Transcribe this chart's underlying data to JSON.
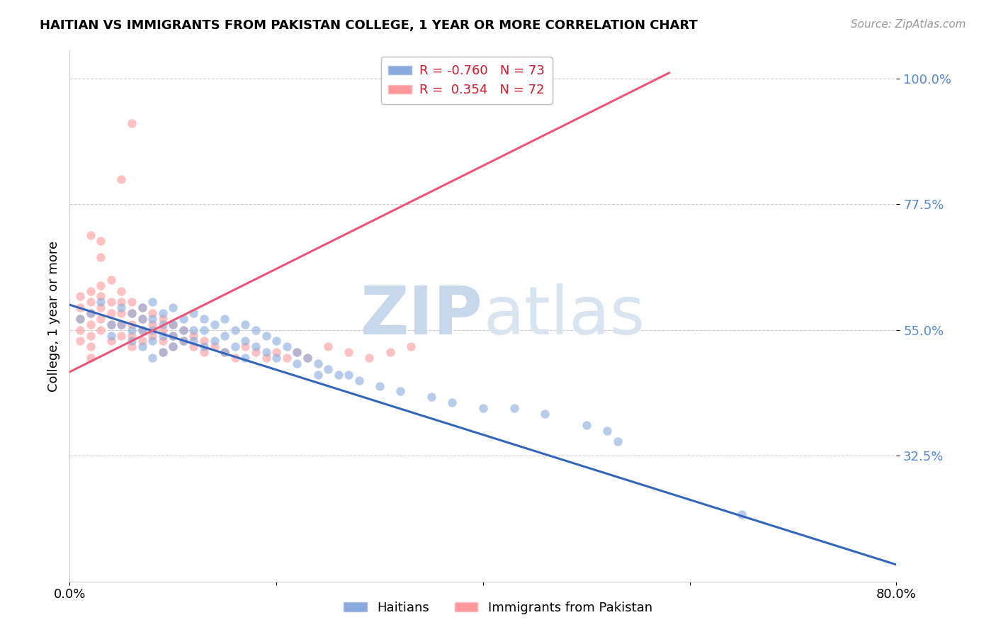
{
  "title": "HAITIAN VS IMMIGRANTS FROM PAKISTAN COLLEGE, 1 YEAR OR MORE CORRELATION CHART",
  "source": "Source: ZipAtlas.com",
  "ylabel": "College, 1 year or more",
  "xmin": 0.0,
  "xmax": 0.8,
  "ymin": 0.1,
  "ymax": 1.05,
  "yticks": [
    0.325,
    0.55,
    0.775,
    1.0
  ],
  "ytick_labels": [
    "32.5%",
    "55.0%",
    "77.5%",
    "100.0%"
  ],
  "xticks": [
    0.0,
    0.2,
    0.4,
    0.6,
    0.8
  ],
  "xtick_labels": [
    "0.0%",
    "",
    "",
    "",
    "80.0%"
  ],
  "r_blue": -0.76,
  "n_blue": 73,
  "r_pink": 0.354,
  "n_pink": 72,
  "blue_color": "#88AADD",
  "pink_color": "#FF9999",
  "blue_line_color": "#3366BB",
  "pink_line_color": "#EE5577",
  "watermark_zip": "ZIP",
  "watermark_atlas": "atlas",
  "watermark_color": "#C8D8EC",
  "blue_scatter_x": [
    0.01,
    0.02,
    0.03,
    0.04,
    0.04,
    0.05,
    0.05,
    0.06,
    0.06,
    0.06,
    0.07,
    0.07,
    0.07,
    0.07,
    0.08,
    0.08,
    0.08,
    0.08,
    0.08,
    0.09,
    0.09,
    0.09,
    0.09,
    0.1,
    0.1,
    0.1,
    0.1,
    0.11,
    0.11,
    0.11,
    0.12,
    0.12,
    0.12,
    0.13,
    0.13,
    0.13,
    0.14,
    0.14,
    0.15,
    0.15,
    0.15,
    0.16,
    0.16,
    0.17,
    0.17,
    0.17,
    0.18,
    0.18,
    0.19,
    0.19,
    0.2,
    0.2,
    0.21,
    0.22,
    0.22,
    0.23,
    0.24,
    0.24,
    0.25,
    0.26,
    0.27,
    0.28,
    0.3,
    0.32,
    0.35,
    0.37,
    0.4,
    0.43,
    0.46,
    0.5,
    0.52,
    0.53,
    0.65
  ],
  "blue_scatter_y": [
    0.57,
    0.58,
    0.6,
    0.56,
    0.54,
    0.59,
    0.56,
    0.58,
    0.55,
    0.53,
    0.59,
    0.57,
    0.55,
    0.52,
    0.6,
    0.57,
    0.55,
    0.53,
    0.5,
    0.58,
    0.56,
    0.54,
    0.51,
    0.59,
    0.56,
    0.54,
    0.52,
    0.57,
    0.55,
    0.53,
    0.58,
    0.55,
    0.53,
    0.57,
    0.55,
    0.52,
    0.56,
    0.53,
    0.57,
    0.54,
    0.51,
    0.55,
    0.52,
    0.56,
    0.53,
    0.5,
    0.55,
    0.52,
    0.54,
    0.51,
    0.53,
    0.5,
    0.52,
    0.51,
    0.49,
    0.5,
    0.49,
    0.47,
    0.48,
    0.47,
    0.47,
    0.46,
    0.45,
    0.44,
    0.43,
    0.42,
    0.41,
    0.41,
    0.4,
    0.38,
    0.37,
    0.35,
    0.22
  ],
  "pink_scatter_x": [
    0.01,
    0.01,
    0.01,
    0.01,
    0.01,
    0.02,
    0.02,
    0.02,
    0.02,
    0.02,
    0.02,
    0.02,
    0.03,
    0.03,
    0.03,
    0.03,
    0.03,
    0.03,
    0.04,
    0.04,
    0.04,
    0.04,
    0.04,
    0.05,
    0.05,
    0.05,
    0.05,
    0.05,
    0.06,
    0.06,
    0.06,
    0.06,
    0.06,
    0.07,
    0.07,
    0.07,
    0.07,
    0.08,
    0.08,
    0.08,
    0.09,
    0.09,
    0.09,
    0.09,
    0.1,
    0.1,
    0.1,
    0.11,
    0.11,
    0.12,
    0.12,
    0.13,
    0.13,
    0.14,
    0.15,
    0.16,
    0.17,
    0.18,
    0.19,
    0.2,
    0.21,
    0.22,
    0.23,
    0.25,
    0.27,
    0.29,
    0.31,
    0.33,
    0.02,
    0.03,
    0.05,
    0.06
  ],
  "pink_scatter_y": [
    0.57,
    0.59,
    0.61,
    0.55,
    0.53,
    0.6,
    0.58,
    0.56,
    0.54,
    0.62,
    0.52,
    0.5,
    0.63,
    0.61,
    0.59,
    0.57,
    0.55,
    0.68,
    0.6,
    0.58,
    0.64,
    0.56,
    0.53,
    0.62,
    0.6,
    0.58,
    0.56,
    0.54,
    0.6,
    0.58,
    0.56,
    0.54,
    0.52,
    0.59,
    0.57,
    0.55,
    0.53,
    0.58,
    0.56,
    0.54,
    0.57,
    0.55,
    0.53,
    0.51,
    0.56,
    0.54,
    0.52,
    0.55,
    0.53,
    0.54,
    0.52,
    0.53,
    0.51,
    0.52,
    0.51,
    0.5,
    0.52,
    0.51,
    0.5,
    0.51,
    0.5,
    0.51,
    0.5,
    0.52,
    0.51,
    0.5,
    0.51,
    0.52,
    0.72,
    0.71,
    0.82,
    0.92
  ],
  "blue_line_x": [
    0.0,
    0.8
  ],
  "blue_line_y": [
    0.595,
    0.13
  ],
  "pink_line_x": [
    0.0,
    0.58
  ],
  "pink_line_y": [
    0.475,
    1.01
  ]
}
